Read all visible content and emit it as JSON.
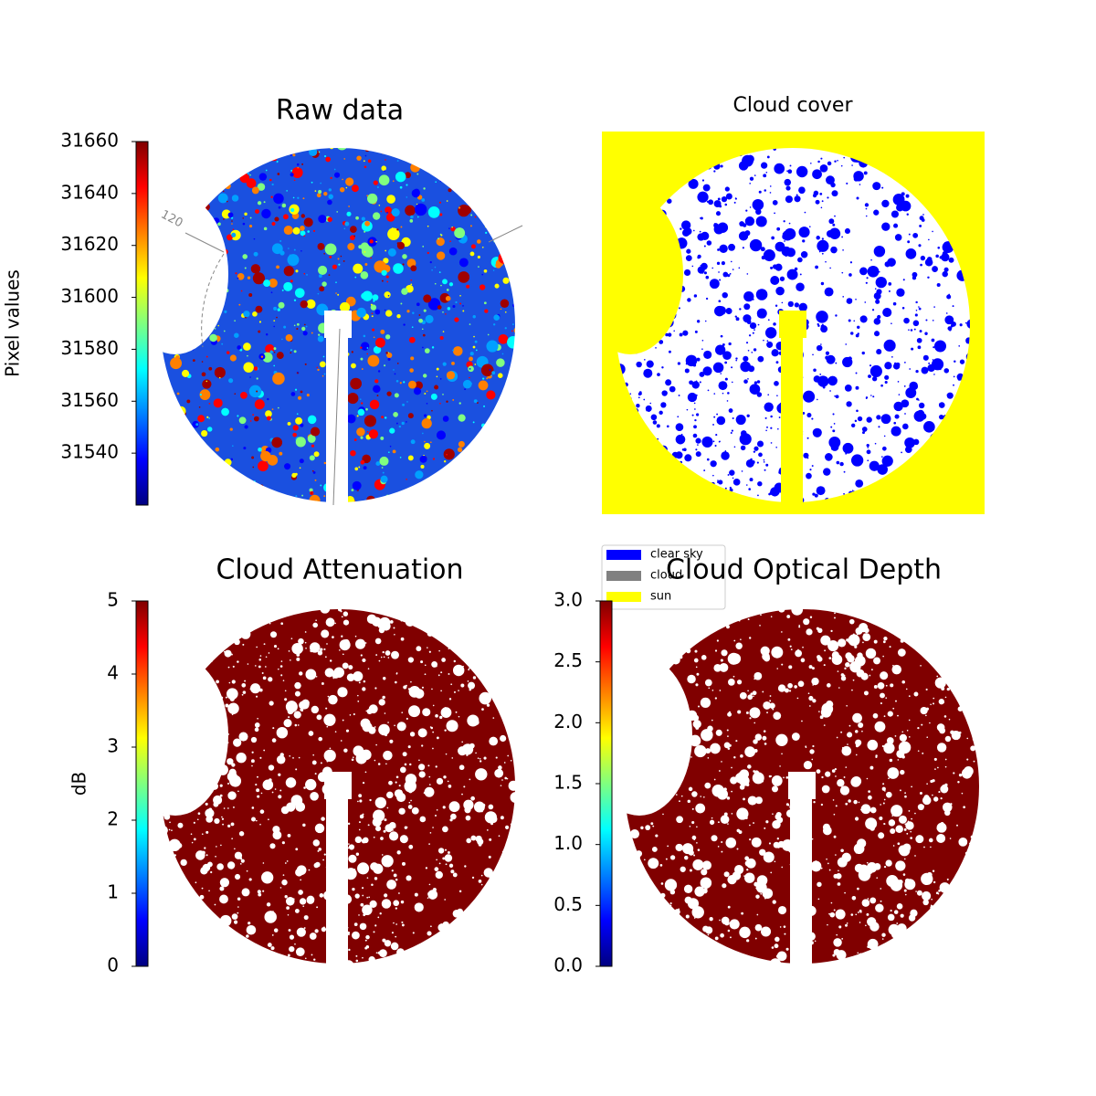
{
  "chart_data": [
    {
      "type": "image",
      "title": "Raw data",
      "clabel": "Pixel values",
      "colormap": "jet",
      "clim": [
        31520,
        31660
      ],
      "cticks": [
        31540,
        31560,
        31580,
        31600,
        31620,
        31640,
        31660
      ],
      "annotation": "120"
    },
    {
      "type": "image",
      "title": "Cloud cover",
      "background": "#ffff00",
      "legend": [
        {
          "name": "clear sky",
          "color": "#0000ff"
        },
        {
          "name": "cloud",
          "color": "#808080"
        },
        {
          "name": "sun",
          "color": "#ffff00"
        }
      ]
    },
    {
      "type": "image",
      "title": "Cloud Attenuation",
      "clabel": "dB",
      "colormap": "jet",
      "clim": [
        0,
        5
      ],
      "cticks": [
        0,
        1,
        2,
        3,
        4,
        5
      ]
    },
    {
      "type": "image",
      "title": "Cloud Optical Depth",
      "colormap": "jet",
      "clim": [
        0,
        3
      ],
      "cticks": [
        {
          "value": 0,
          "label": "0.0"
        },
        {
          "value": 0.5,
          "label": "0.5"
        },
        {
          "value": 1,
          "label": "1.0"
        },
        {
          "value": 1.5,
          "label": "1.5"
        },
        {
          "value": 2,
          "label": "2.0"
        },
        {
          "value": 2.5,
          "label": "2.5"
        },
        {
          "value": 3,
          "label": "3.0"
        }
      ]
    }
  ]
}
